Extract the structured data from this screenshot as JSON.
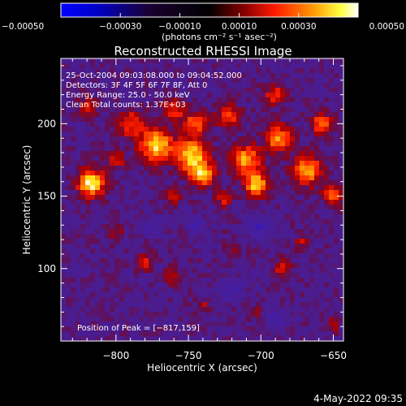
{
  "chart_data": {
    "type": "heatmap",
    "title": "Reconstructed RHESSI Image",
    "xlabel": "Heliocentric X (arcsec)",
    "ylabel": "Heliocentric Y (arcsec)",
    "xlim": [
      -838,
      -643
    ],
    "ylim": [
      50,
      245
    ],
    "x_ticks": [
      -800,
      -750,
      -700,
      -650
    ],
    "x_tick_labels": [
      "−800",
      "−750",
      "−700",
      "−650"
    ],
    "y_ticks": [
      100,
      150,
      200
    ],
    "y_tick_labels": [
      "100",
      "150",
      "200"
    ],
    "colorbar": {
      "range": [
        -0.0005,
        0.0005
      ],
      "ticks": [
        -0.0005,
        -0.0003,
        -0.0001,
        0.0001,
        0.0003,
        0.0005
      ],
      "tick_labels": [
        "−0.00050",
        "−0.00030",
        "−0.00010",
        "0.00010",
        "0.00030",
        "0.00050"
      ],
      "units_label": "(photons cm⁻² s⁻¹ asec⁻²)",
      "colors": [
        "#0000ff",
        "#000000",
        "#ff0000",
        "#ff8000",
        "#ffff00",
        "#ffffff"
      ]
    },
    "annotations": [
      "25-Oct-2004 09:03:08.000 to 09:04:52.000",
      "Detectors: 3F 4F 5F 6F 7F 8F, Att 0",
      "Energy Range: 25.0 - 50.0 keV",
      "Clean    Total counts: 1.37E+03"
    ],
    "peak_label": "Position of Peak = [−817,159]",
    "peak": [
      -817,
      159
    ],
    "hotspots": [
      {
        "x": -817,
        "y": 159,
        "v": 0.0005,
        "r": 9
      },
      {
        "x": -772,
        "y": 185,
        "v": 0.00046,
        "r": 11
      },
      {
        "x": -748,
        "y": 178,
        "v": 0.00044,
        "r": 11
      },
      {
        "x": -740,
        "y": 165,
        "v": 0.0004,
        "r": 8
      },
      {
        "x": -745,
        "y": 200,
        "v": 0.0003,
        "r": 8
      },
      {
        "x": -710,
        "y": 175,
        "v": 0.00038,
        "r": 10
      },
      {
        "x": -703,
        "y": 158,
        "v": 0.00043,
        "r": 8
      },
      {
        "x": -688,
        "y": 190,
        "v": 0.00036,
        "r": 9
      },
      {
        "x": -668,
        "y": 168,
        "v": 0.0004,
        "r": 10
      },
      {
        "x": -658,
        "y": 200,
        "v": 0.00035,
        "r": 7
      },
      {
        "x": -650,
        "y": 150,
        "v": 0.0003,
        "r": 7
      },
      {
        "x": -790,
        "y": 200,
        "v": 0.00028,
        "r": 9
      },
      {
        "x": -800,
        "y": 175,
        "v": 0.0002,
        "r": 7
      },
      {
        "x": -760,
        "y": 210,
        "v": 0.00025,
        "r": 8
      },
      {
        "x": -722,
        "y": 205,
        "v": 0.00028,
        "r": 8
      },
      {
        "x": -690,
        "y": 220,
        "v": 0.00025,
        "r": 7
      },
      {
        "x": -820,
        "y": 212,
        "v": 0.00018,
        "r": 7
      },
      {
        "x": -725,
        "y": 148,
        "v": 0.0002,
        "r": 6
      },
      {
        "x": -760,
        "y": 150,
        "v": 0.00018,
        "r": 6
      },
      {
        "x": -780,
        "y": 105,
        "v": 0.00022,
        "r": 6
      },
      {
        "x": -760,
        "y": 95,
        "v": 0.00018,
        "r": 6
      },
      {
        "x": -685,
        "y": 100,
        "v": 0.0002,
        "r": 6
      },
      {
        "x": -672,
        "y": 118,
        "v": 0.00016,
        "r": 5
      },
      {
        "x": -740,
        "y": 75,
        "v": 0.00015,
        "r": 5
      },
      {
        "x": -650,
        "y": 62,
        "v": 0.00018,
        "r": 5
      },
      {
        "x": -705,
        "y": 70,
        "v": 0.00014,
        "r": 5
      },
      {
        "x": -800,
        "y": 125,
        "v": 0.00012,
        "r": 5
      },
      {
        "x": -720,
        "y": 115,
        "v": 0.0001,
        "r": 5
      },
      {
        "x": -700,
        "y": 128,
        "v": -0.00018,
        "r": 8
      },
      {
        "x": -720,
        "y": 85,
        "v": -0.0002,
        "r": 7
      },
      {
        "x": -775,
        "y": 130,
        "v": -0.00015,
        "r": 6
      },
      {
        "x": -690,
        "y": 65,
        "v": -0.0002,
        "r": 6
      },
      {
        "x": -745,
        "y": 130,
        "v": -0.00016,
        "r": 6
      }
    ]
  },
  "footer": {
    "date_stamp": "4-May-2022 09:35"
  }
}
